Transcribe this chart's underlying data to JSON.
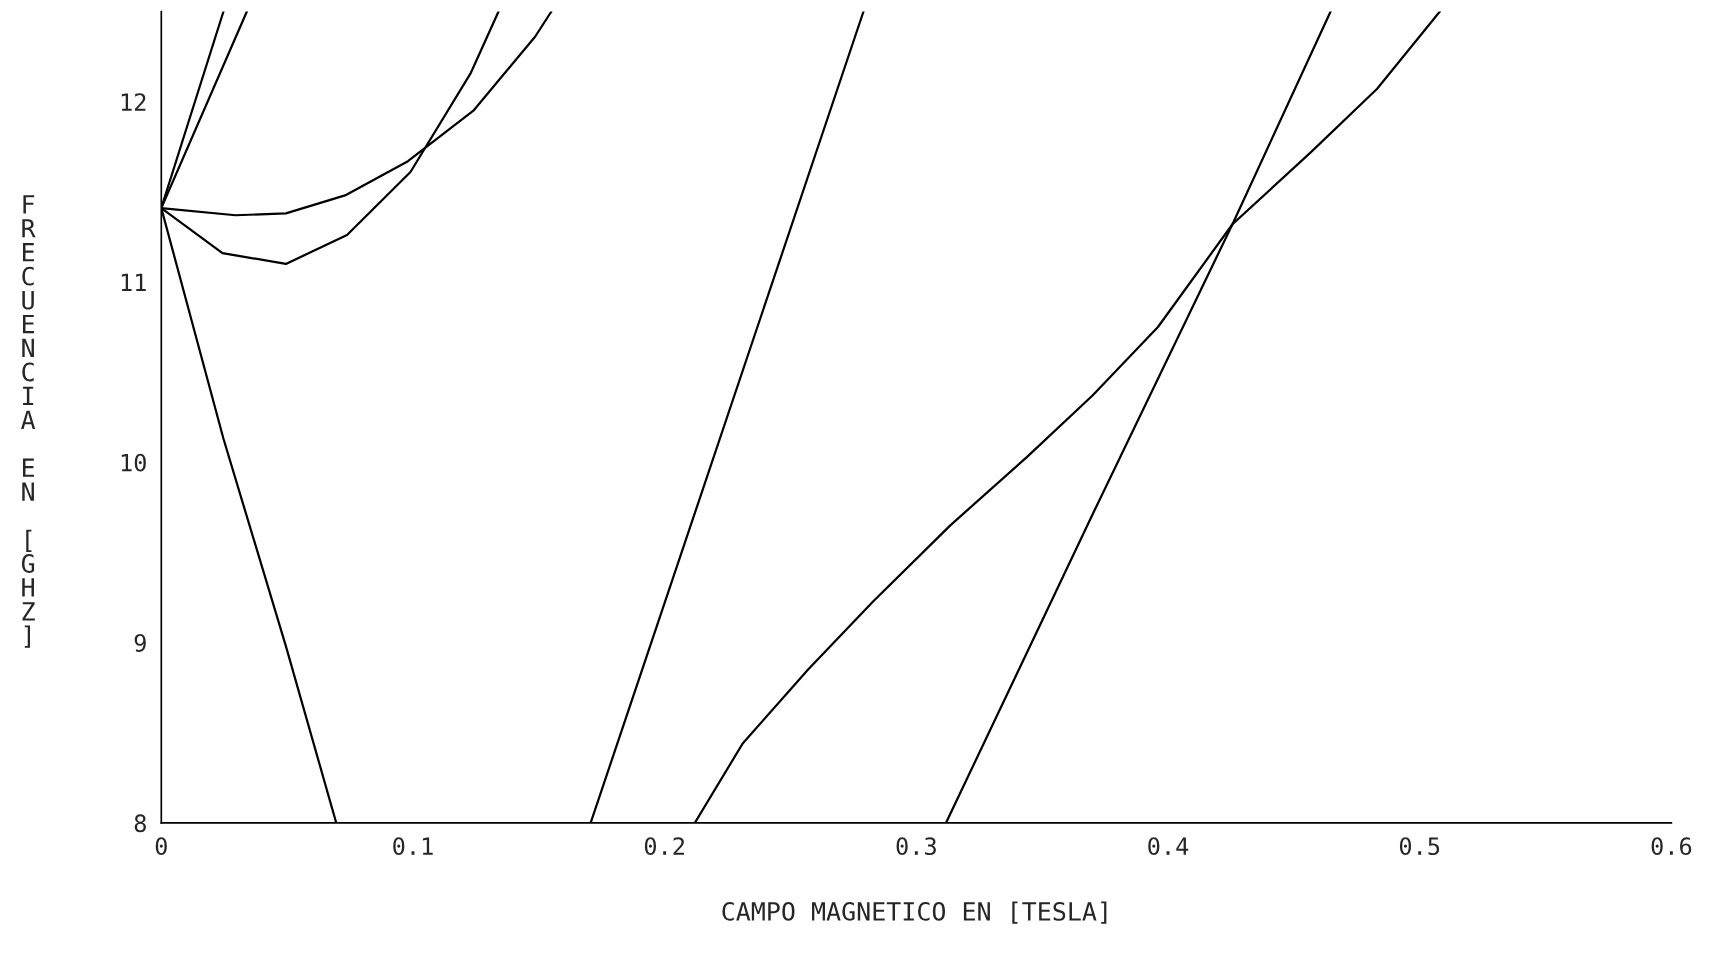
{
  "chart_data": {
    "type": "line",
    "xlabel": "CAMPO MAGNETICO EN [TESLA]",
    "ylabel": "FRECUENCIA EN [GHZ]",
    "xlim": [
      0,
      0.6
    ],
    "ylim": [
      8,
      12.5
    ],
    "xticks": [
      0,
      0.1,
      0.2,
      0.3,
      0.4,
      0.5,
      0.6
    ],
    "yticks": [
      8,
      9,
      10,
      11,
      12
    ],
    "grid": false,
    "legend": false,
    "marker": "none",
    "line_style": "solid",
    "series": [
      {
        "color": "#000000",
        "x": [
          0,
          0.0247
        ],
        "values": [
          11.41,
          12.5
        ]
      },
      {
        "color": "#000000",
        "x": [
          0,
          0.034
        ],
        "values": [
          11.41,
          12.5
        ]
      },
      {
        "color": "#000000",
        "x": [
          0,
          0.0295,
          0.0495,
          0.073,
          0.098,
          0.124,
          0.1485,
          0.155
        ],
        "values": [
          11.41,
          11.37,
          11.38,
          11.48,
          11.67,
          11.95,
          12.36,
          12.5
        ]
      },
      {
        "color": "#000000",
        "x": [
          0,
          0.0243,
          0.0495,
          0.0738,
          0.099,
          0.123,
          0.134
        ],
        "values": [
          11.41,
          11.16,
          11.1,
          11.26,
          11.61,
          12.16,
          12.5
        ]
      },
      {
        "color": "#000000",
        "x": [
          0,
          0.0247,
          0.0495,
          0.0695
        ],
        "values": [
          11.41,
          10.13,
          8.98,
          8.0
        ]
      },
      {
        "color": "#000000",
        "x": [
          0.1706,
          0.279
        ],
        "values": [
          8.0,
          12.5
        ]
      },
      {
        "color": "#000000",
        "x": [
          0.212,
          0.231,
          0.257,
          0.283,
          0.3135,
          0.344,
          0.37,
          0.396,
          0.4256,
          0.4568,
          0.483,
          0.508
        ],
        "values": [
          8.0,
          8.44,
          8.85,
          9.23,
          9.65,
          10.03,
          10.37,
          10.75,
          11.32,
          11.72,
          12.07,
          12.5
        ]
      },
      {
        "color": "#000000",
        "x": [
          0.3118,
          0.37,
          0.4256,
          0.4646
        ],
        "values": [
          8.0,
          9.71,
          11.32,
          12.5
        ]
      }
    ]
  }
}
